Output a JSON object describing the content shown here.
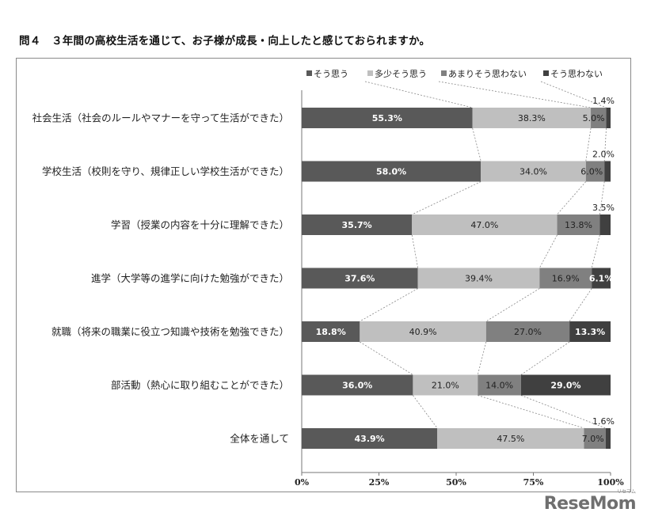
{
  "title": "問４　３年間の高校生活を通じて、お子様が成長・向上したと感じておられますか。",
  "watermark": "ReseMom",
  "watermark_sub": "リセマム",
  "chart_data": {
    "type": "bar",
    "stacked": true,
    "orientation": "horizontal",
    "categories": [
      "社会生活（社会のルールやマナーを守って生活ができた）",
      "学校生活（校則を守り、規律正しい学校生活ができた）",
      "学習（授業の内容を十分に理解できた）",
      "進学（大学等の進学に向けた勉強ができた）",
      "就職（将来の職業に役立つ知識や技術を勉強できた）",
      "部活動（熱心に取り組むことができた）",
      "全体を通して"
    ],
    "series": [
      {
        "name": "そう思う",
        "color": "#595959",
        "label_color": "#ffffff",
        "values": [
          55.3,
          58.0,
          35.7,
          37.6,
          18.8,
          36.0,
          43.9
        ]
      },
      {
        "name": "多少そう思う",
        "color": "#bfbfbf",
        "label_color": "#222222",
        "values": [
          38.3,
          34.0,
          47.0,
          39.4,
          40.9,
          21.0,
          47.5
        ]
      },
      {
        "name": "あまりそう思わない",
        "color": "#808080",
        "label_color": "#222222",
        "values": [
          5.0,
          6.0,
          13.8,
          16.9,
          27.0,
          14.0,
          7.0
        ]
      },
      {
        "name": "そう思わない",
        "color": "#404040",
        "label_color": "#ffffff",
        "values": [
          1.4,
          2.0,
          3.5,
          6.1,
          13.3,
          29.0,
          1.6
        ]
      }
    ],
    "xlim": [
      0,
      100
    ],
    "xticks": [
      "0%",
      "25%",
      "50%",
      "75%",
      "100%"
    ],
    "legend_position": "top-right",
    "series_lines": true
  }
}
